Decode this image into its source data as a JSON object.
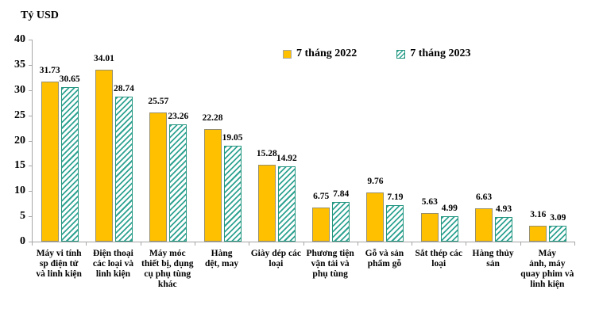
{
  "colors": {
    "background": "#FFFFFF",
    "axis": "#A6A6A6",
    "text": "#000000",
    "series_2022_fill": "#FFC000",
    "series_2022_border": "#98906B",
    "series_2023_stripe": "#2FA392",
    "series_2023_border": "#24957F",
    "hatch_background": "#FFFFFF"
  },
  "chart_data": {
    "type": "bar",
    "title": "",
    "ylabel": "Tỷ USD",
    "xlabel": "",
    "ylim": [
      0,
      40
    ],
    "yticks": [
      0,
      5,
      10,
      15,
      20,
      25,
      30,
      35,
      40
    ],
    "grid": false,
    "legend_position": "top",
    "value_labels": true,
    "categories": [
      "Máy vi tính sp điện tử và linh kiện",
      "Điện thoại các loại và linh kiện",
      "Máy móc thiết bị, dụng cụ phụ tùng khác",
      "Hàng dệt, may",
      "Giày dép các loại",
      "Phương tiện vận tải và phụ tùng",
      "Gỗ và sản phẩm gỗ",
      "Sắt thép các loại",
      "Hàng thủy sản",
      "Máy ảnh, máy quay phim và linh kiện"
    ],
    "categories_wrapped": [
      "Máy vi tính\nsp điện tử\nvà linh kiện",
      "Điện thoại\ncác loại và\nlinh kiện",
      "Máy móc\nthiết bị, dụng\ncụ phụ tùng\nkhác",
      "Hàng\ndệt, may",
      "Giày dép các\nloại",
      "Phương tiện\nvận tải và\nphụ tùng",
      "Gỗ và sản\nphẩm gỗ",
      "Sắt thép các\nloại",
      "Hàng thủy\nsản",
      "Máy\nảnh, máy\nquay phim và\nlinh kiện"
    ],
    "series": [
      {
        "name": "7 tháng 2022",
        "style": "solid",
        "color": "#FFC000",
        "values": [
          31.73,
          34.01,
          25.57,
          22.28,
          15.28,
          6.75,
          9.76,
          5.63,
          6.63,
          3.16
        ]
      },
      {
        "name": "7 tháng 2023",
        "style": "hatched",
        "color": "#2FA392",
        "values": [
          30.65,
          28.74,
          23.26,
          19.05,
          14.92,
          7.84,
          7.19,
          4.99,
          4.93,
          3.09
        ]
      }
    ]
  }
}
